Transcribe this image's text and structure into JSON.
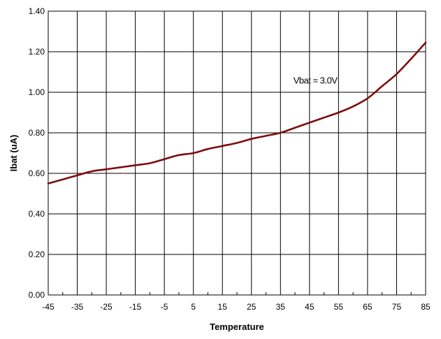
{
  "chart_data": {
    "type": "line",
    "title": "",
    "xlabel": "Temperature",
    "ylabel": "Ibat (uA)",
    "xlim": [
      -45,
      85
    ],
    "ylim": [
      0,
      1.4
    ],
    "x_ticks": [
      "-45",
      "-35",
      "-25",
      "-15",
      "-5",
      "5",
      "15",
      "25",
      "35",
      "45",
      "55",
      "65",
      "75",
      "85"
    ],
    "y_ticks": [
      "0.00",
      "0.20",
      "0.40",
      "0.60",
      "0.80",
      "1.00",
      "1.20",
      "1.40"
    ],
    "grid": true,
    "annotations": [
      {
        "text": "Vbat = 3.0V",
        "x": 47,
        "y": 1.06
      }
    ],
    "series": [
      {
        "color": "#7f0c0c",
        "x": [
          -45,
          -40,
          -35,
          -30,
          -25,
          -20,
          -15,
          -10,
          -5,
          0,
          5,
          10,
          15,
          20,
          25,
          30,
          35,
          40,
          45,
          50,
          55,
          60,
          65,
          70,
          75,
          80,
          85
        ],
        "values": [
          0.55,
          0.57,
          0.59,
          0.61,
          0.62,
          0.63,
          0.64,
          0.65,
          0.67,
          0.69,
          0.7,
          0.72,
          0.735,
          0.75,
          0.77,
          0.785,
          0.8,
          0.825,
          0.85,
          0.875,
          0.9,
          0.93,
          0.97,
          1.03,
          1.09,
          1.165,
          1.245
        ]
      }
    ]
  }
}
